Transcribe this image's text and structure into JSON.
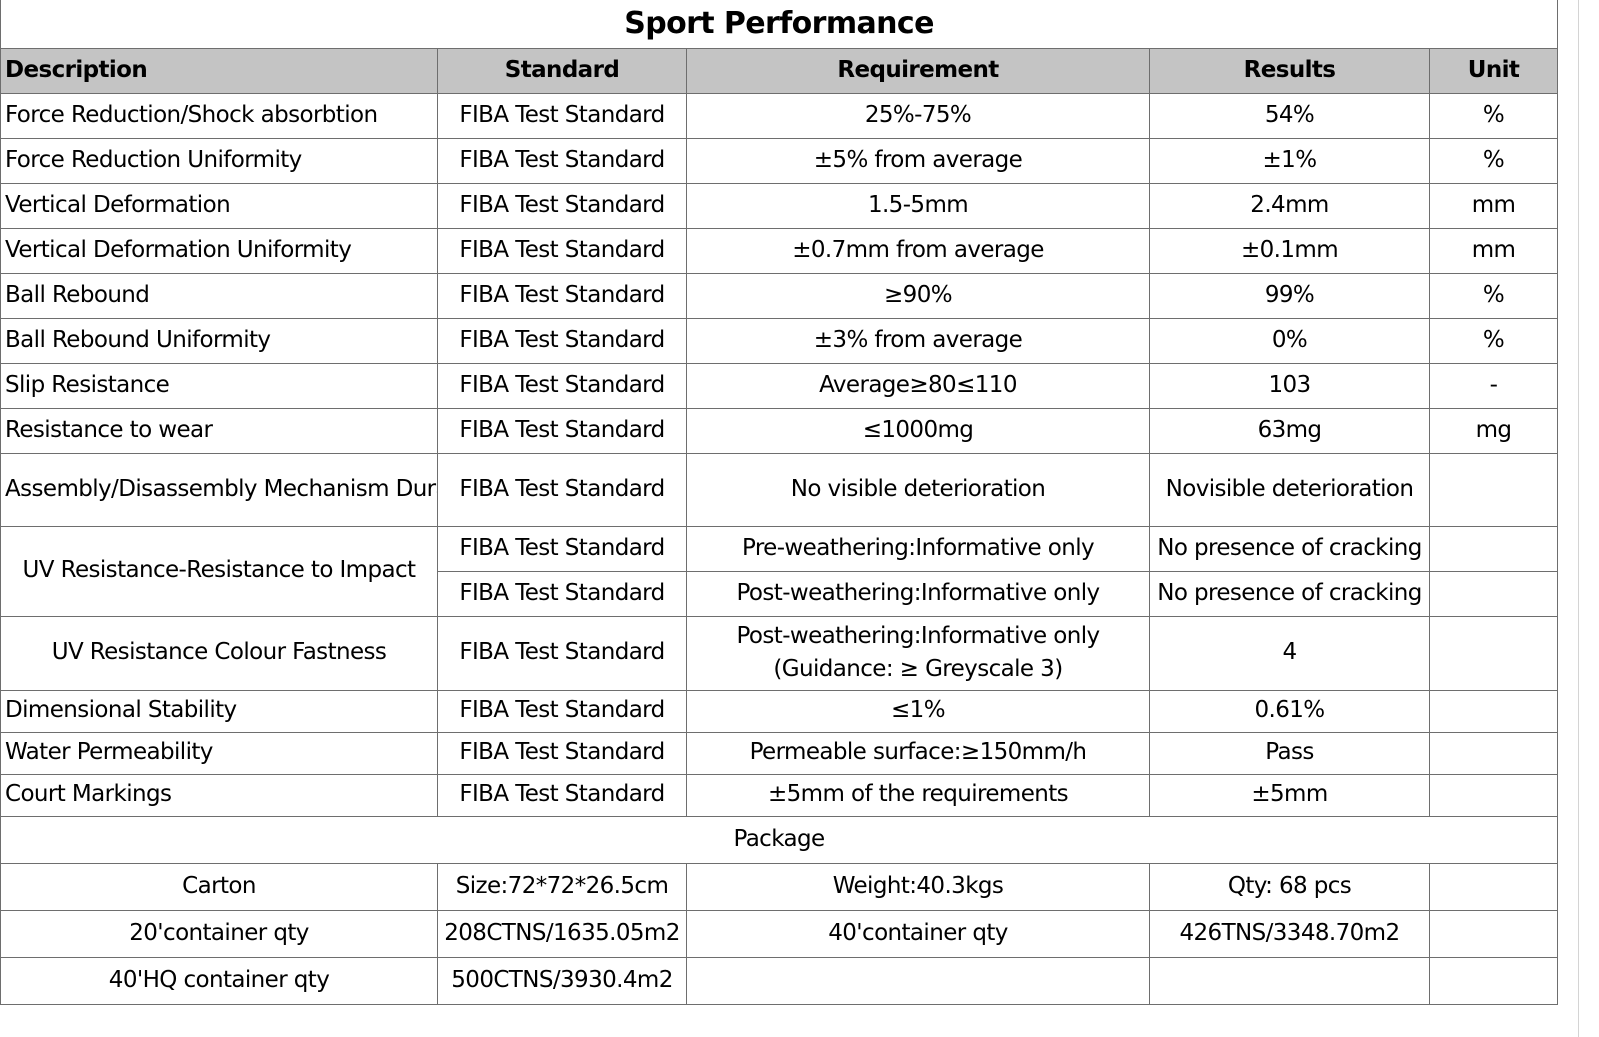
{
  "title": "Sport Performance",
  "headers": {
    "description": "Description",
    "standard": "Standard",
    "requirement": "Requirement",
    "results": "Results",
    "unit": "Unit"
  },
  "rows": [
    {
      "description": "Force Reduction/Shock absorbtion",
      "standard": "FIBA Test Standard",
      "requirement": "25%-75%",
      "results": "54%",
      "unit": "%"
    },
    {
      "description": "Force Reduction Uniformity",
      "standard": "FIBA Test Standard",
      "requirement": "±5% from average",
      "results": "±1%",
      "unit": "%"
    },
    {
      "description": "Vertical Deformation",
      "standard": "FIBA Test Standard",
      "requirement": "1.5-5mm",
      "results": "2.4mm",
      "unit": "mm"
    },
    {
      "description": "Vertical Deformation Uniformity",
      "standard": "FIBA Test Standard",
      "requirement": "±0.7mm from average",
      "results": "±0.1mm",
      "unit": "mm"
    },
    {
      "description": "Ball Rebound",
      "standard": "FIBA Test Standard",
      "requirement": "≥90%",
      "results": "99%",
      "unit": "%"
    },
    {
      "description": "Ball Rebound Uniformity",
      "standard": "FIBA Test Standard",
      "requirement": "±3% from average",
      "results": "0%",
      "unit": "%"
    },
    {
      "description": "Slip Resistance",
      "standard": "FIBA Test Standard",
      "requirement": "Average≥80≤110",
      "results": "103",
      "unit": "-"
    },
    {
      "description": "Resistance to wear",
      "standard": "FIBA Test Standard",
      "requirement": "≤1000mg",
      "results": "63mg",
      "unit": "mg"
    },
    {
      "description": "Assembly/Disassembly Mechanism Durability",
      "standard": "FIBA Test Standard",
      "requirement": "No visible deterioration",
      "results": "Novisible deterioration",
      "unit": ""
    }
  ],
  "uv_impact": {
    "description": "UV Resistance-Resistance to Impact",
    "rows": [
      {
        "standard": "FIBA Test Standard",
        "requirement": "Pre-weathering:Informative only",
        "results": "No presence of cracking",
        "unit": ""
      },
      {
        "standard": "FIBA Test Standard",
        "requirement": "Post-weathering:Informative only",
        "results": "No presence of cracking",
        "unit": ""
      }
    ]
  },
  "uv_colour": {
    "description": "UV Resistance Colour Fastness",
    "standard": "FIBA Test Standard",
    "requirement_line1": "Post-weathering:Informative only",
    "requirement_line2": "(Guidance: ≥ Greyscale 3)",
    "results": "4",
    "unit": ""
  },
  "rows2": [
    {
      "description": "Dimensional Stability",
      "standard": "FIBA Test Standard",
      "requirement": "≤1%",
      "results": "0.61%",
      "unit": ""
    },
    {
      "description": "Water Permeability",
      "standard": "FIBA Test Standard",
      "requirement": "Permeable surface:≥150mm/h",
      "results": "Pass",
      "unit": ""
    },
    {
      "description": "Court Markings",
      "standard": "FIBA Test Standard",
      "requirement": "±5mm of the requirements",
      "results": "±5mm",
      "unit": ""
    }
  ],
  "package": {
    "title": "Package",
    "rows": [
      [
        "Carton",
        "Size:72*72*26.5cm",
        "Weight:40.3kgs",
        "Qty: 68 pcs",
        ""
      ],
      [
        "20'container qty",
        "208CTNS/1635.05m2",
        "40'container qty",
        "426TNS/3348.70m2",
        ""
      ],
      [
        "40'HQ container qty",
        "500CTNS/3930.4m2",
        "",
        "",
        ""
      ]
    ]
  }
}
